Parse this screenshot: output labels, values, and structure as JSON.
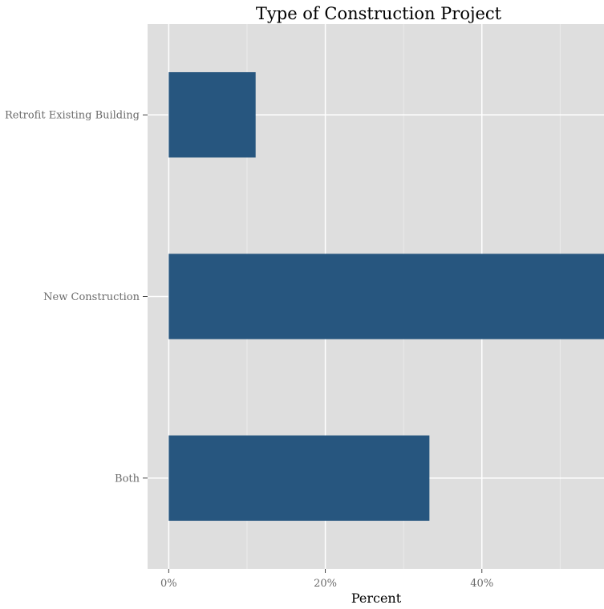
{
  "chart_data": {
    "type": "bar",
    "orientation": "horizontal",
    "title": "Type of Construction Project",
    "xlabel": "Percent",
    "ylabel": "",
    "categories": [
      "Retrofit Existing Building",
      "New Construction",
      "Both"
    ],
    "values": [
      11.1,
      55.6,
      33.3
    ],
    "x_ticks": [
      "0%",
      "20%",
      "40%"
    ],
    "xlim": [
      -2.7,
      55.6
    ],
    "grid": true,
    "legend": "none",
    "colors": {
      "bar": "#27567f",
      "panel": "#dedede",
      "grid": "#ffffff"
    }
  }
}
